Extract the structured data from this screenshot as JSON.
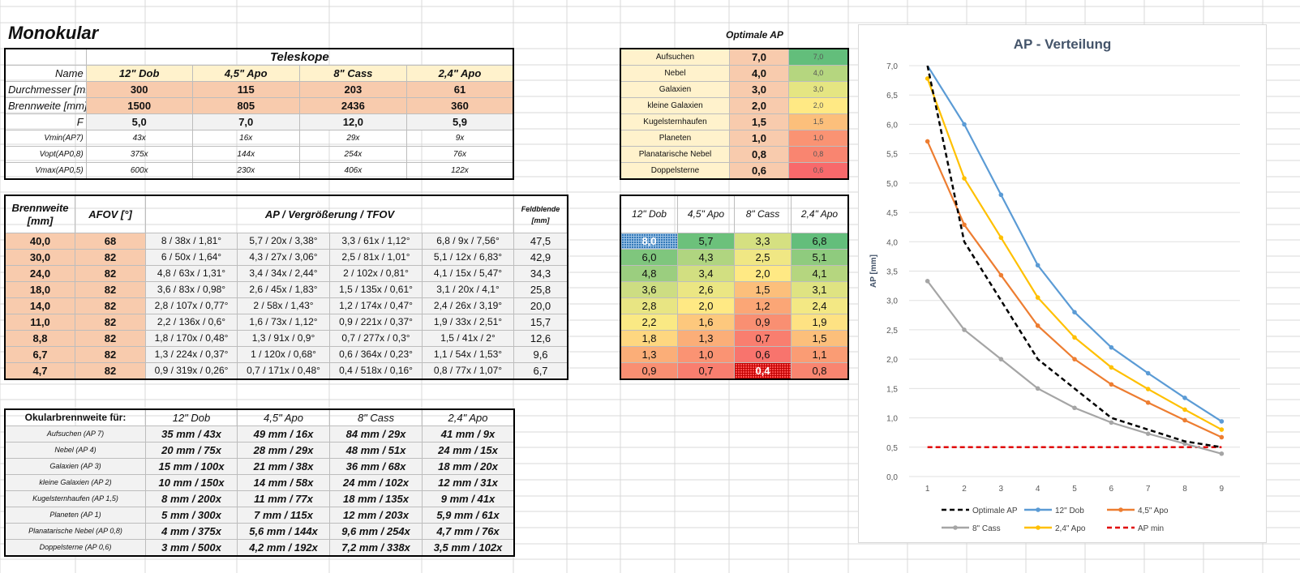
{
  "sheet": {
    "title": "Monokular",
    "teleskope_title": "Teleskope",
    "labels": {
      "name": "Name",
      "durchmesser": "Durchmesser [mm]",
      "brennweite": "Brennweite [mm]",
      "f": "F",
      "vmin": "Vmin(AP7)",
      "vopt": "Vopt(AP0,8)",
      "vmax": "Vmax(AP0,5)"
    },
    "telescopes": [
      {
        "name": "12\" Dob",
        "durchmesser": "300",
        "brennweite": "1500",
        "f": "5,0",
        "vmin": "43x",
        "vopt": "375x",
        "vmax": "600x"
      },
      {
        "name": "4,5\" Apo",
        "durchmesser": "115",
        "brennweite": "805",
        "f": "7,0",
        "vmin": "16x",
        "vopt": "144x",
        "vmax": "230x"
      },
      {
        "name": "8\" Cass",
        "durchmesser": "203",
        "brennweite": "2436",
        "f": "12,0",
        "vmin": "29x",
        "vopt": "254x",
        "vmax": "406x"
      },
      {
        "name": "2,4\" Apo",
        "durchmesser": "61",
        "brennweite": "360",
        "f": "5,9",
        "vmin": "9x",
        "vopt": "76x",
        "vmax": "122x"
      }
    ]
  },
  "optap": {
    "title": "Optimale AP",
    "rows": [
      {
        "label": "Aufsuchen",
        "value": "7,0",
        "color": "#63be7b"
      },
      {
        "label": "Nebel",
        "value": "4,0",
        "color": "#b5d67f"
      },
      {
        "label": "Galaxien",
        "value": "3,0",
        "color": "#e5e582"
      },
      {
        "label": "kleine Galaxien",
        "value": "2,0",
        "color": "#ffe984"
      },
      {
        "label": "Kugelsternhaufen",
        "value": "1,5",
        "color": "#fcbf7b"
      },
      {
        "label": "Planeten",
        "value": "1,0",
        "color": "#fa9373"
      },
      {
        "label": "Planatarische Nebel",
        "value": "0,8",
        "color": "#f98570"
      },
      {
        "label": "Doppelsterne",
        "value": "0,6",
        "color": "#f8696b"
      }
    ]
  },
  "eyepieces": {
    "header": {
      "brennweite": "Brennweite [mm]",
      "afov": "AFOV [°]",
      "ap": "AP / Vergrößerung / TFOV",
      "feld": "Feldblende [mm]"
    },
    "rows": [
      {
        "bw": "40,0",
        "afov": "68",
        "c": [
          "8 / 38x / 1,81°",
          "5,7 / 20x / 3,38°",
          "3,3 / 61x / 1,12°",
          "6,8 / 9x / 7,56°"
        ],
        "feld": "47,5"
      },
      {
        "bw": "30,0",
        "afov": "82",
        "c": [
          "6 / 50x / 1,64°",
          "4,3 / 27x / 3,06°",
          "2,5 / 81x / 1,01°",
          "5,1 / 12x / 6,83°"
        ],
        "feld": "42,9"
      },
      {
        "bw": "24,0",
        "afov": "82",
        "c": [
          "4,8 / 63x / 1,31°",
          "3,4 / 34x / 2,44°",
          "2 / 102x / 0,81°",
          "4,1 / 15x / 5,47°"
        ],
        "feld": "34,3"
      },
      {
        "bw": "18,0",
        "afov": "82",
        "c": [
          "3,6 / 83x / 0,98°",
          "2,6 / 45x / 1,83°",
          "1,5 / 135x / 0,61°",
          "3,1 / 20x / 4,1°"
        ],
        "feld": "25,8"
      },
      {
        "bw": "14,0",
        "afov": "82",
        "c": [
          "2,8 / 107x / 0,77°",
          "2 / 58x / 1,43°",
          "1,2 / 174x / 0,47°",
          "2,4 / 26x / 3,19°"
        ],
        "feld": "20,0"
      },
      {
        "bw": "11,0",
        "afov": "82",
        "c": [
          "2,2 / 136x / 0,6°",
          "1,6 / 73x / 1,12°",
          "0,9 / 221x / 0,37°",
          "1,9 / 33x / 2,51°"
        ],
        "feld": "15,7"
      },
      {
        "bw": "8,8",
        "afov": "82",
        "c": [
          "1,8 / 170x / 0,48°",
          "1,3 / 91x / 0,9°",
          "0,7 / 277x / 0,3°",
          "1,5 / 41x / 2°"
        ],
        "feld": "12,6"
      },
      {
        "bw": "6,7",
        "afov": "82",
        "c": [
          "1,3 / 224x / 0,37°",
          "1 / 120x / 0,68°",
          "0,6 / 364x / 0,23°",
          "1,1 / 54x / 1,53°"
        ],
        "feld": "9,6"
      },
      {
        "bw": "4,7",
        "afov": "82",
        "c": [
          "0,9 / 319x / 0,26°",
          "0,7 / 171x / 0,48°",
          "0,4 / 518x / 0,16°",
          "0,8 / 77x / 1,07°"
        ],
        "feld": "6,7"
      }
    ]
  },
  "apgrid": {
    "headers": [
      "12\" Dob",
      "4,5\" Apo",
      "8\" Cass",
      "2,4\" Apo"
    ],
    "rows": [
      [
        {
          "v": "8,0",
          "c": "pat-blue"
        },
        {
          "v": "5,7",
          "c": "#6cc17b"
        },
        {
          "v": "3,3",
          "c": "#d5e081"
        },
        {
          "v": "6,8",
          "c": "#63be7b"
        }
      ],
      [
        {
          "v": "6,0",
          "c": "#7fc67d"
        },
        {
          "v": "4,3",
          "c": "#b0d580"
        },
        {
          "v": "2,5",
          "c": "#f0e784"
        },
        {
          "v": "5,1",
          "c": "#8fcb7e"
        }
      ],
      [
        {
          "v": "4,8",
          "c": "#9bce7f"
        },
        {
          "v": "3,4",
          "c": "#d2df81"
        },
        {
          "v": "2,0",
          "c": "#ffe984"
        },
        {
          "v": "4,1",
          "c": "#b5d67f"
        }
      ],
      [
        {
          "v": "3,6",
          "c": "#cddd82"
        },
        {
          "v": "2,6",
          "c": "#ebe683"
        },
        {
          "v": "1,5",
          "c": "#fcbf7b"
        },
        {
          "v": "3,1",
          "c": "#dfe382"
        }
      ],
      [
        {
          "v": "2,8",
          "c": "#e8e583"
        },
        {
          "v": "2,0",
          "c": "#ffe984"
        },
        {
          "v": "1,2",
          "c": "#fba676"
        },
        {
          "v": "2,4",
          "c": "#f3e884"
        }
      ],
      [
        {
          "v": "2,2",
          "c": "#fae984"
        },
        {
          "v": "1,6",
          "c": "#fdc87d"
        },
        {
          "v": "0,9",
          "c": "#f98f72"
        },
        {
          "v": "1,9",
          "c": "#fee283"
        }
      ],
      [
        {
          "v": "1,8",
          "c": "#fed780"
        },
        {
          "v": "1,3",
          "c": "#fbae78"
        },
        {
          "v": "0,7",
          "c": "#f97e6f"
        },
        {
          "v": "1,5",
          "c": "#fcbf7b"
        }
      ],
      [
        {
          "v": "1,3",
          "c": "#fbae78"
        },
        {
          "v": "1,0",
          "c": "#fa9373"
        },
        {
          "v": "0,6",
          "c": "#f8746d"
        },
        {
          "v": "1,1",
          "c": "#fa9c74"
        }
      ],
      [
        {
          "v": "0,9",
          "c": "#f98f72"
        },
        {
          "v": "0,7",
          "c": "#f97e6f"
        },
        {
          "v": "0,4",
          "c": "pat-red"
        },
        {
          "v": "0,8",
          "c": "#f98570"
        }
      ]
    ]
  },
  "okular": {
    "header": "Okularbrennweite für:",
    "columns": [
      "12\" Dob",
      "4,5\" Apo",
      "8\" Cass",
      "2,4\" Apo"
    ],
    "rows": [
      {
        "label": "Aufsuchen (AP 7)",
        "c": [
          "35 mm / 43x",
          "49 mm / 16x",
          "84 mm / 29x",
          "41 mm / 9x"
        ]
      },
      {
        "label": "Nebel (AP 4)",
        "c": [
          "20 mm / 75x",
          "28 mm / 29x",
          "48 mm / 51x",
          "24 mm / 15x"
        ]
      },
      {
        "label": "Galaxien (AP 3)",
        "c": [
          "15 mm / 100x",
          "21 mm / 38x",
          "36 mm / 68x",
          "18 mm / 20x"
        ]
      },
      {
        "label": "kleine Galaxien (AP 2)",
        "c": [
          "10 mm / 150x",
          "14 mm / 58x",
          "24 mm / 102x",
          "12 mm / 31x"
        ]
      },
      {
        "label": "Kugelsternhaufen (AP 1,5)",
        "c": [
          "8 mm / 200x",
          "11 mm / 77x",
          "18 mm / 135x",
          "9 mm / 41x"
        ]
      },
      {
        "label": "Planeten (AP 1)",
        "c": [
          "5 mm / 300x",
          "7 mm / 115x",
          "12 mm / 203x",
          "5,9 mm / 61x"
        ]
      },
      {
        "label": "Planatarische Nebel (AP 0,8)",
        "c": [
          "4 mm / 375x",
          "5,6 mm / 144x",
          "9,6 mm / 254x",
          "4,7 mm / 76x"
        ]
      },
      {
        "label": "Doppelsterne (AP 0,6)",
        "c": [
          "3 mm / 500x",
          "4,2 mm / 192x",
          "7,2 mm / 338x",
          "3,5 mm / 102x"
        ]
      }
    ]
  },
  "chart_data": {
    "type": "line",
    "title": "AP - Verteilung",
    "ylabel": "AP [mm]",
    "xlabel": "",
    "x": [
      1,
      2,
      3,
      4,
      5,
      6,
      7,
      8,
      9
    ],
    "ylim": [
      0,
      7
    ],
    "yticks": [
      "0,0",
      "0,5",
      "1,0",
      "1,5",
      "2,0",
      "2,5",
      "3,0",
      "3,5",
      "4,0",
      "4,5",
      "5,0",
      "5,5",
      "6,0",
      "6,5",
      "7,0"
    ],
    "xticks": [
      "1",
      "2",
      "3",
      "4",
      "5",
      "6",
      "7",
      "8",
      "9"
    ],
    "grid": true,
    "legend": "bottom",
    "series": [
      {
        "name": "Optimale AP",
        "values": [
          7.0,
          4.0,
          3.0,
          2.0,
          1.5,
          1.0,
          0.8,
          0.6,
          0.5
        ],
        "color": "#000000",
        "dash": "dashed",
        "markers": false
      },
      {
        "name": "12\" Dob",
        "values": [
          8.0,
          6.0,
          4.8,
          3.6,
          2.8,
          2.2,
          1.76,
          1.34,
          0.94
        ],
        "color": "#5b9bd5",
        "dash": "solid",
        "markers": true
      },
      {
        "name": "4,5\" Apo",
        "values": [
          5.71,
          4.29,
          3.43,
          2.57,
          2.0,
          1.57,
          1.26,
          0.96,
          0.67
        ],
        "color": "#ed7d31",
        "dash": "solid",
        "markers": true
      },
      {
        "name": "8\" Cass",
        "values": [
          3.33,
          2.5,
          2.0,
          1.5,
          1.17,
          0.92,
          0.73,
          0.56,
          0.39
        ],
        "color": "#a5a5a5",
        "dash": "solid",
        "markers": true
      },
      {
        "name": "2,4\" Apo",
        "values": [
          6.78,
          5.08,
          4.07,
          3.05,
          2.37,
          1.86,
          1.49,
          1.14,
          0.8
        ],
        "color": "#ffc000",
        "dash": "solid",
        "markers": true
      },
      {
        "name": "AP min",
        "values": [
          0.5,
          0.5,
          0.5,
          0.5,
          0.5,
          0.5,
          0.5,
          0.5,
          0.5
        ],
        "color": "#e00000",
        "dash": "dashed",
        "markers": false
      }
    ]
  }
}
